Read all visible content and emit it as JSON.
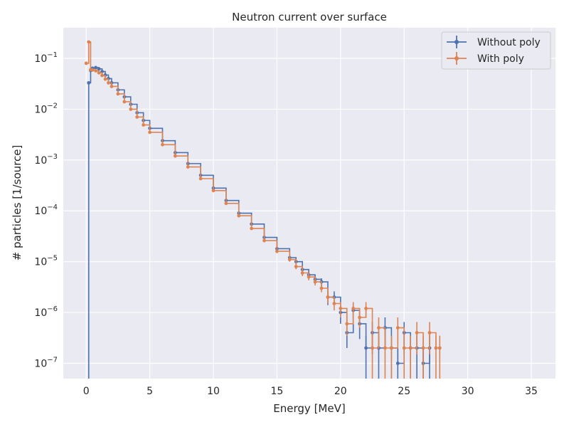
{
  "chart_data": {
    "type": "line",
    "title": "Neutron current over surface",
    "xlabel": "Energy [MeV]",
    "ylabel": "# particles [1/source]",
    "xlim": [
      -1.8,
      36.9
    ],
    "ylim": [
      5e-08,
      0.4
    ],
    "yscale": "log",
    "grid": true,
    "legend_position": "top-right",
    "x_ticks": [
      0,
      5,
      10,
      15,
      20,
      25,
      30,
      35
    ],
    "x_tick_labels": [
      "0",
      "5",
      "10",
      "15",
      "20",
      "25",
      "30",
      "35"
    ],
    "y_ticks": [
      1e-07,
      1e-06,
      1e-05,
      0.0001,
      0.001,
      0.01,
      0.1
    ],
    "y_tick_labels": [
      {
        "base": "10",
        "exp": "−7"
      },
      {
        "base": "10",
        "exp": "−6"
      },
      {
        "base": "10",
        "exp": "−5"
      },
      {
        "base": "10",
        "exp": "−4"
      },
      {
        "base": "10",
        "exp": "−3"
      },
      {
        "base": "10",
        "exp": "−2"
      },
      {
        "base": "10",
        "exp": "−1"
      }
    ],
    "series": [
      {
        "name": "Without poly",
        "color": "#4c72b0",
        "x": [
          0.1,
          0.2,
          0.35,
          0.5,
          0.75,
          1.0,
          1.25,
          1.5,
          1.75,
          2.0,
          2.5,
          3.0,
          3.5,
          4.0,
          4.5,
          5.0,
          6.0,
          7.0,
          8.0,
          9.0,
          10.0,
          11.0,
          12.0,
          13.0,
          14.0,
          15.0,
          16.0,
          16.5,
          17.0,
          17.5,
          18.0,
          18.5,
          19.0,
          19.5,
          20.0,
          20.5,
          21.0,
          21.5,
          22.0,
          22.5,
          23.0,
          23.5,
          24.0,
          24.5,
          25.0,
          25.5,
          26.0,
          26.5,
          27.0
        ],
        "y": [
          1e-09,
          0.033,
          0.058,
          0.064,
          0.066,
          0.062,
          0.055,
          0.047,
          0.04,
          0.033,
          0.024,
          0.0175,
          0.0125,
          0.0085,
          0.006,
          0.0042,
          0.0024,
          0.0014,
          0.00085,
          0.0005,
          0.00028,
          0.00016,
          9e-05,
          5.5e-05,
          3e-05,
          1.8e-05,
          1.2e-05,
          1e-05,
          7e-06,
          5.5e-06,
          4.5e-06,
          4e-06,
          2e-06,
          2e-06,
          1e-06,
          4e-07,
          1.1e-06,
          6e-07,
          2e-07,
          4e-07,
          2e-07,
          5e-07,
          2e-07,
          1e-07,
          4e-07,
          2e-07,
          2e-07,
          1e-07,
          2e-07
        ],
        "err": [
          0,
          0.002,
          0.002,
          0.002,
          0.002,
          0.002,
          0.002,
          0.0015,
          0.0012,
          0.001,
          0.0007,
          0.0005,
          0.0004,
          0.0003,
          0.0002,
          0.00015,
          8e-05,
          5e-05,
          3e-05,
          2e-05,
          1e-05,
          6e-06,
          4e-06,
          3e-06,
          2e-06,
          1.5e-06,
          1.2e-06,
          1.1e-06,
          9e-07,
          8e-07,
          8e-07,
          7e-07,
          6e-07,
          6e-07,
          4e-07,
          2e-07,
          4e-07,
          3e-07,
          1.5e-07,
          2.5e-07,
          1.5e-07,
          3e-07,
          1.5e-07,
          9e-08,
          2.5e-07,
          1.5e-07,
          1.5e-07,
          9e-08,
          1.5e-07
        ]
      },
      {
        "name": "With poly",
        "color": "#dd8452",
        "x": [
          0.0,
          0.2,
          0.35,
          0.5,
          0.75,
          1.0,
          1.25,
          1.5,
          1.75,
          2.0,
          2.5,
          3.0,
          3.5,
          4.0,
          4.5,
          5.0,
          6.0,
          7.0,
          8.0,
          9.0,
          10.0,
          11.0,
          12.0,
          13.0,
          14.0,
          15.0,
          16.0,
          16.5,
          17.0,
          17.5,
          18.0,
          18.5,
          19.0,
          19.5,
          20.0,
          20.5,
          21.0,
          21.5,
          22.0,
          22.5,
          23.0,
          23.5,
          24.0,
          24.5,
          25.0,
          25.5,
          26.0,
          26.5,
          27.0,
          27.5,
          27.8
        ],
        "y": [
          0.08,
          0.21,
          0.06,
          0.059,
          0.057,
          0.052,
          0.046,
          0.039,
          0.033,
          0.028,
          0.02,
          0.014,
          0.01,
          0.007,
          0.0049,
          0.0035,
          0.002,
          0.0012,
          0.00073,
          0.00043,
          0.00025,
          0.00014,
          8e-05,
          4.5e-05,
          2.6e-05,
          1.6e-05,
          1.1e-05,
          8e-06,
          6e-06,
          5e-06,
          4e-06,
          3e-06,
          2e-06,
          1.5e-06,
          1.2e-06,
          6e-07,
          1.2e-06,
          8e-07,
          1.2e-06,
          2e-07,
          5e-07,
          2e-07,
          2e-07,
          5e-07,
          2e-07,
          2e-07,
          4e-07,
          2e-07,
          4e-07,
          2e-07,
          2e-07
        ],
        "err": [
          0.004,
          0.01,
          0.002,
          0.002,
          0.002,
          0.002,
          0.0015,
          0.0013,
          0.0011,
          0.0009,
          0.0006,
          0.0004,
          0.0003,
          0.0002,
          0.00015,
          0.0001,
          6e-05,
          4e-05,
          2.5e-05,
          1.5e-05,
          9e-06,
          5e-06,
          3.5e-06,
          2.5e-06,
          1.8e-06,
          1.3e-06,
          1e-06,
          9e-07,
          8e-07,
          7e-07,
          6e-07,
          5e-07,
          5e-07,
          4e-07,
          4e-07,
          2.5e-07,
          4e-07,
          3e-07,
          4e-07,
          1.5e-07,
          3e-07,
          1.5e-07,
          1.5e-07,
          3e-07,
          1.5e-07,
          1.5e-07,
          2.5e-07,
          1.5e-07,
          2.5e-07,
          1.5e-07,
          1.5e-07
        ]
      }
    ]
  }
}
